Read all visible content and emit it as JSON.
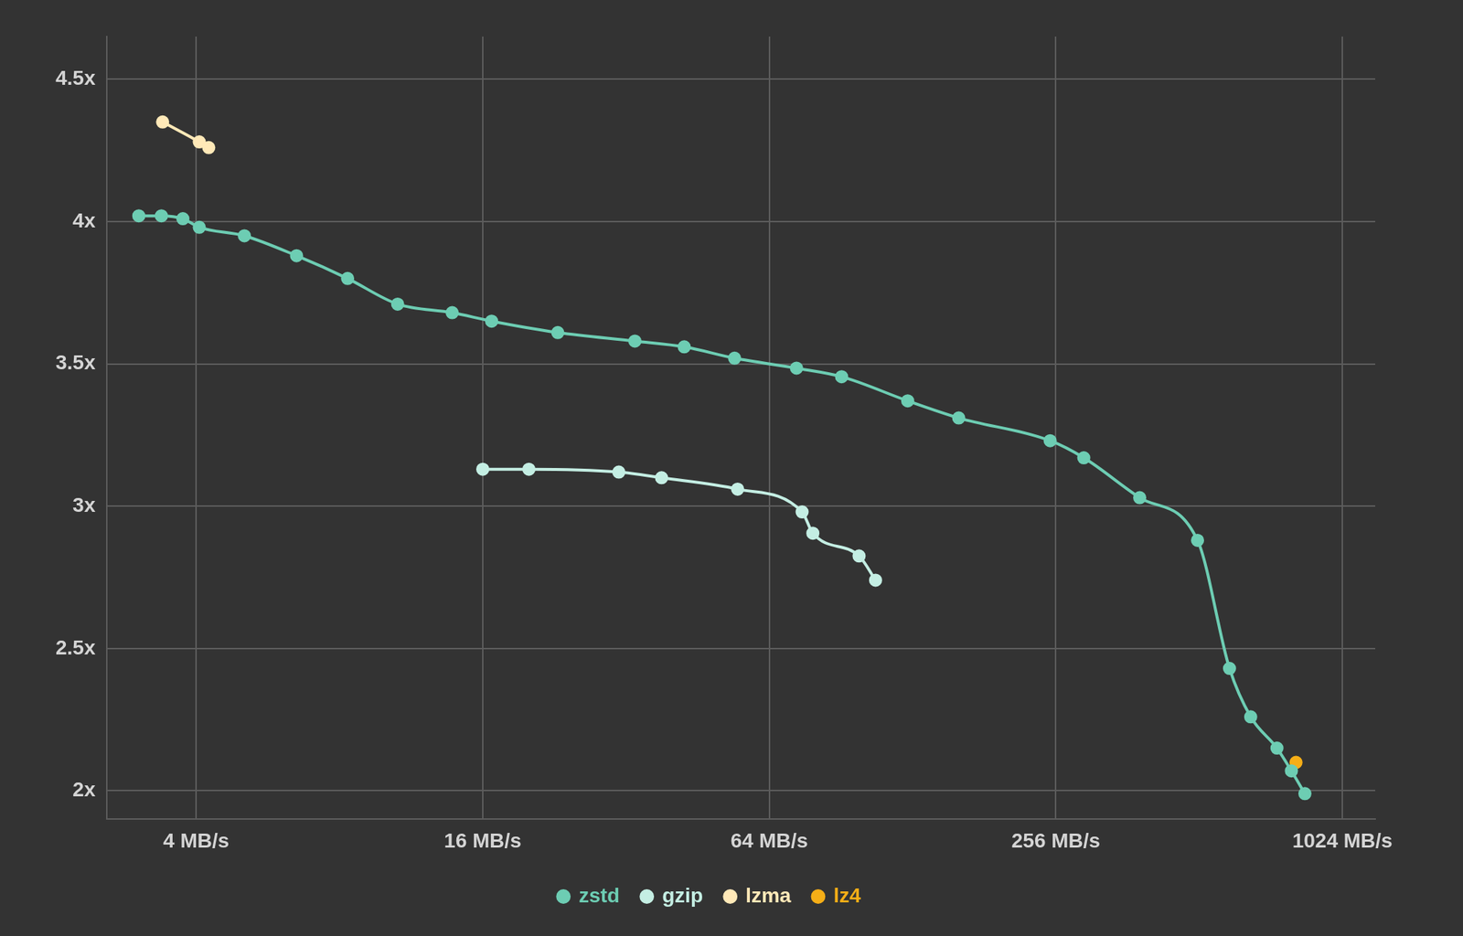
{
  "chart_data": {
    "type": "line",
    "log": "x",
    "grid": true,
    "legend": "bottom",
    "xlim": [
      2.6,
      1200
    ],
    "xticks": [
      {
        "value": 4,
        "label": "4 MB/s"
      },
      {
        "value": 16,
        "label": "16 MB/s"
      },
      {
        "value": 64,
        "label": "64 MB/s"
      },
      {
        "value": 256,
        "label": "256 MB/s"
      },
      {
        "value": 1024,
        "label": "1024 MB/s"
      }
    ],
    "ylim": [
      1.9,
      4.65
    ],
    "yticks": [
      {
        "value": 2,
        "label": "2x"
      },
      {
        "value": 2.5,
        "label": "2.5x"
      },
      {
        "value": 3,
        "label": "3x"
      },
      {
        "value": 3.5,
        "label": "3.5x"
      },
      {
        "value": 4,
        "label": "4x"
      },
      {
        "value": 4.5,
        "label": "4.5x"
      }
    ],
    "series": [
      {
        "name": "zstd",
        "color": "#6dcdb3",
        "marker": "circle",
        "line_style": "solid",
        "x": [
          3.03,
          3.38,
          3.75,
          4.06,
          5.05,
          6.5,
          8.32,
          10.6,
          13.8,
          16.7,
          23.0,
          33.4,
          42.4,
          54.1,
          73.0,
          90.8,
          125,
          160,
          249,
          293,
          384,
          508,
          593,
          657,
          746,
          800,
          854
        ],
        "values": [
          4.02,
          4.02,
          4.01,
          3.98,
          3.95,
          3.88,
          3.8,
          3.71,
          3.68,
          3.65,
          3.61,
          3.58,
          3.56,
          3.52,
          3.485,
          3.455,
          3.37,
          3.31,
          3.23,
          3.17,
          3.03,
          2.88,
          2.43,
          2.26,
          2.15,
          2.07,
          1.99
        ]
      },
      {
        "name": "gzip",
        "color": "#c4eee3",
        "marker": "circle",
        "line_style": "solid",
        "x": [
          16,
          20.0,
          30.9,
          38.0,
          54.9,
          75.0,
          79,
          98.8,
          107
        ],
        "values": [
          3.13,
          3.13,
          3.12,
          3.1,
          3.06,
          2.98,
          2.905,
          2.825,
          2.74
        ]
      },
      {
        "name": "lzma",
        "color": "#ffe9b8",
        "marker": "circle",
        "line_style": "solid",
        "x": [
          3.4,
          4.06,
          4.25
        ],
        "values": [
          4.35,
          4.28,
          4.26
        ]
      },
      {
        "name": "lz4",
        "color": "#f5ae17",
        "marker": "circle",
        "line_style": "solid",
        "x": [
          818
        ],
        "values": [
          2.1
        ]
      }
    ]
  }
}
